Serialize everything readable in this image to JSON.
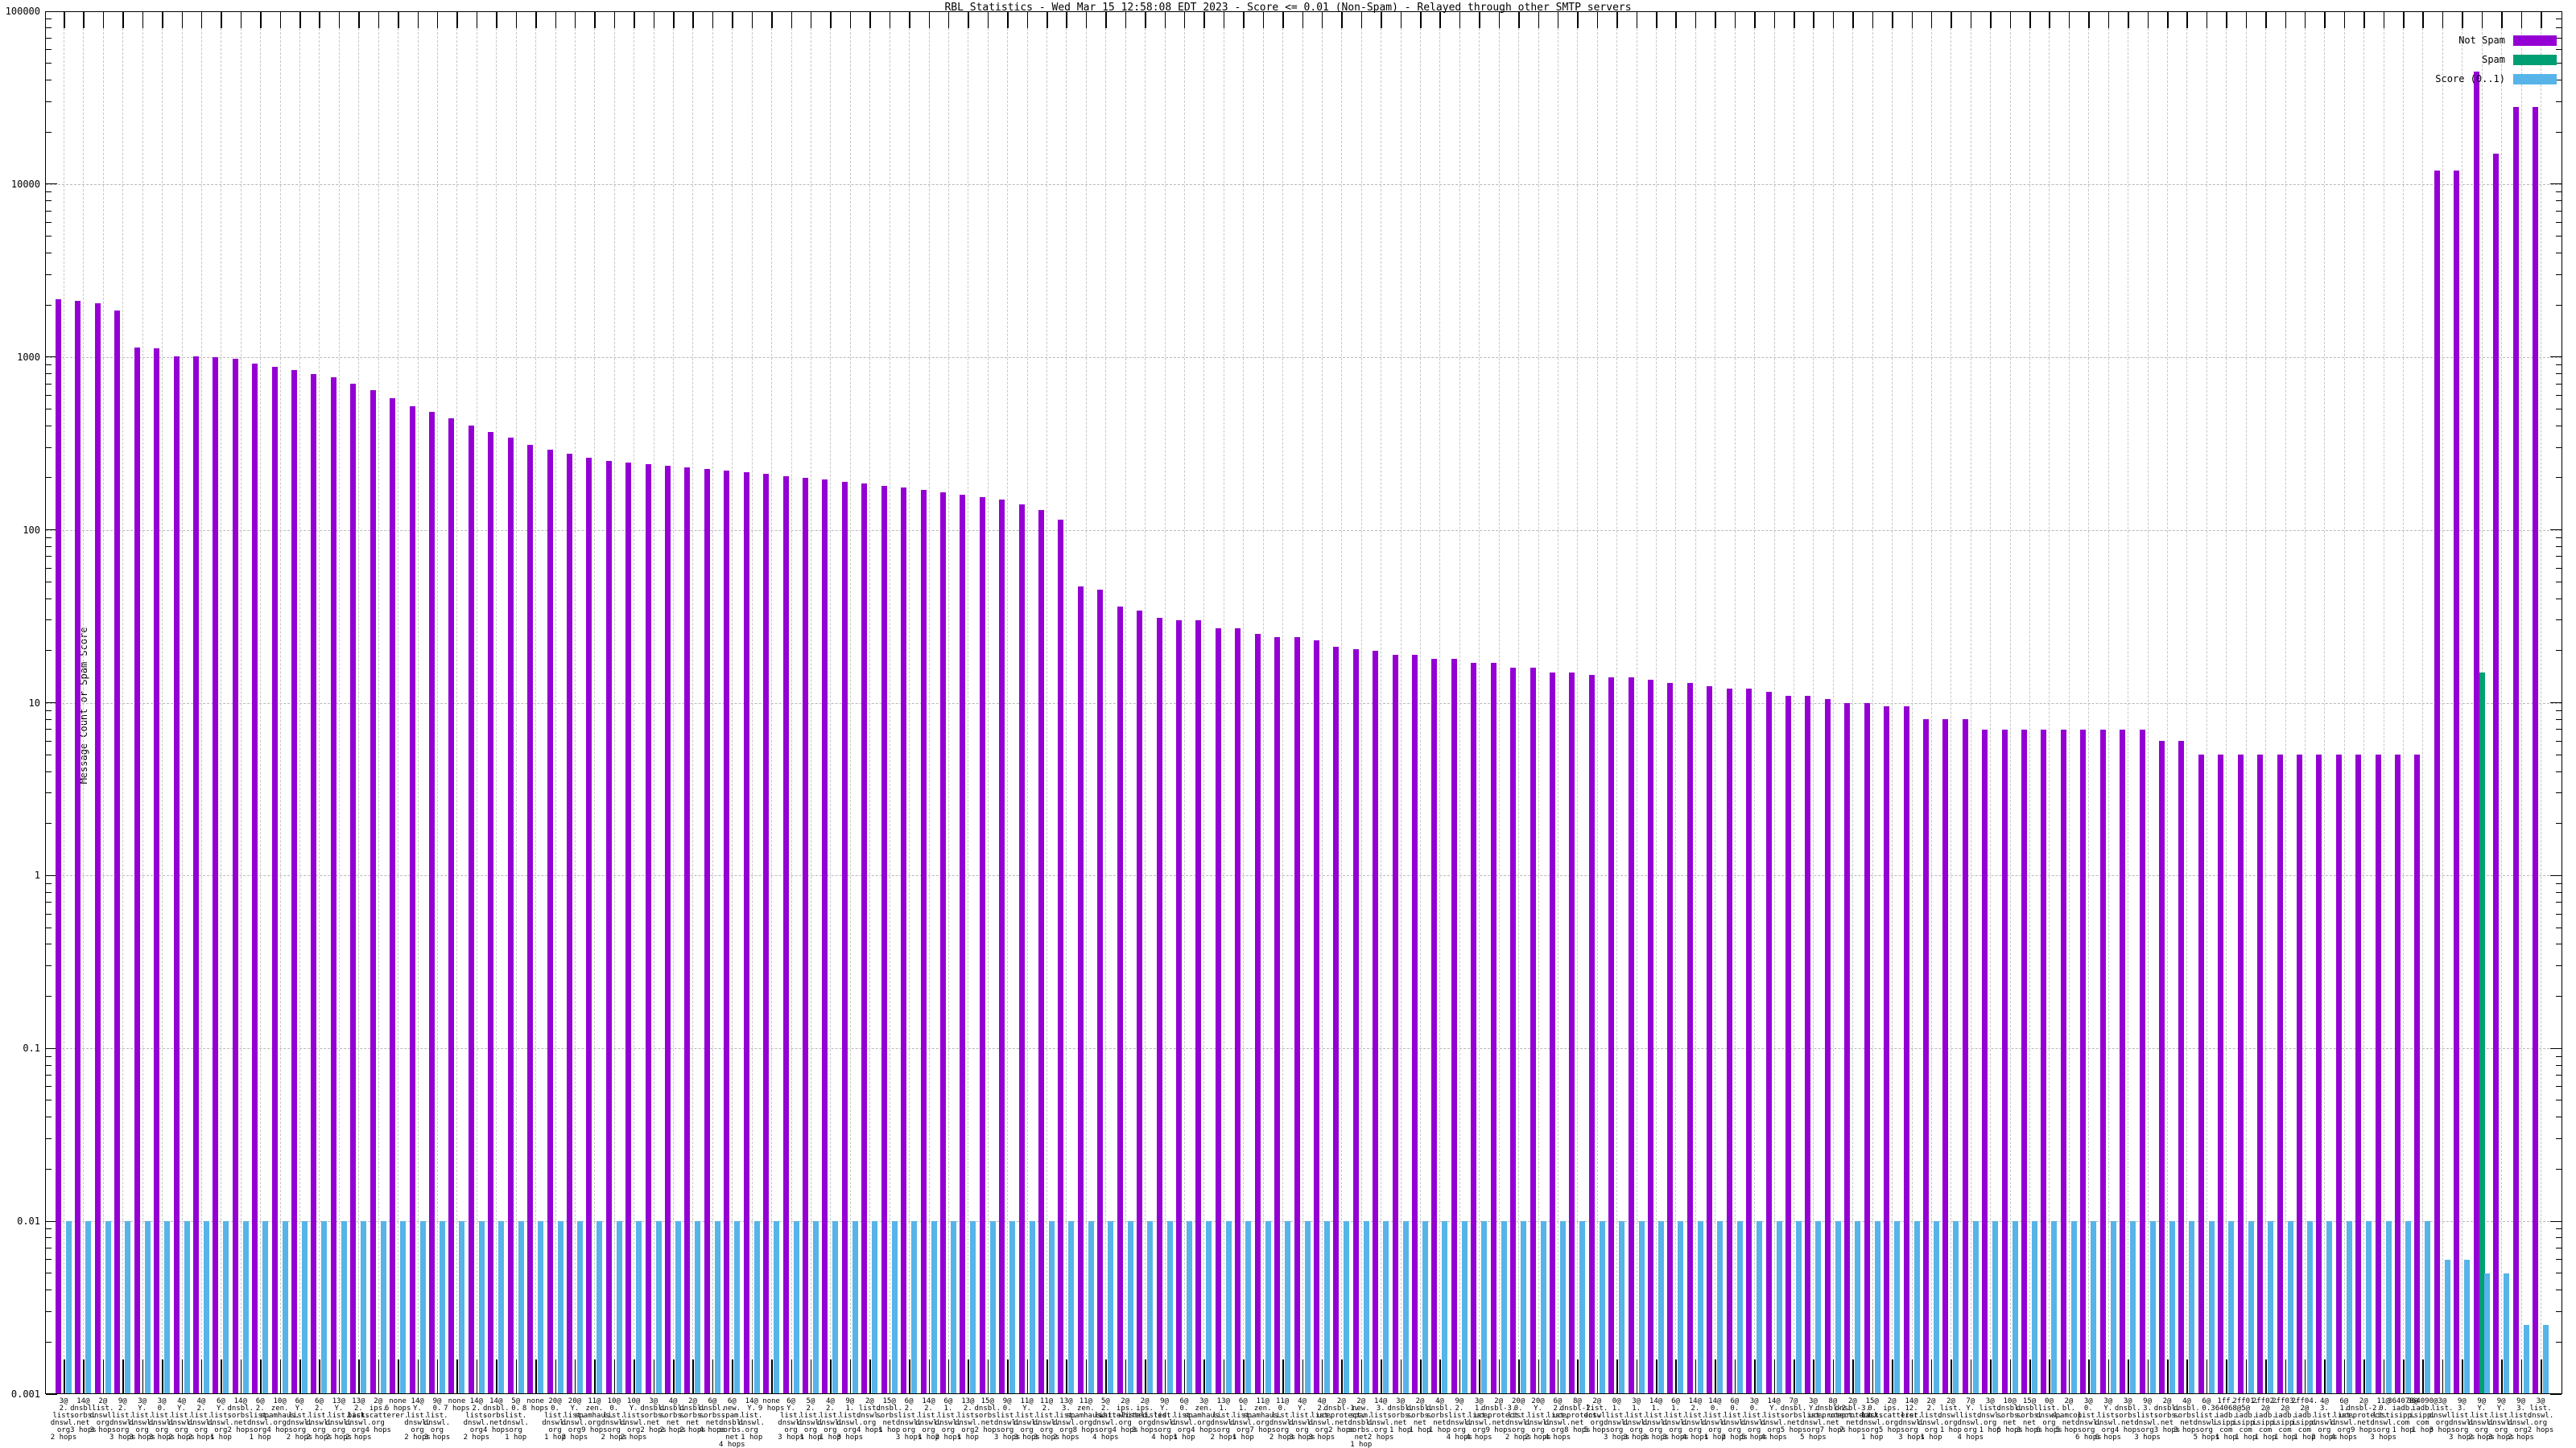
{
  "title": "RBL Statistics - Wed Mar 15 12:58:08 EDT 2023 - Score <= 0.01 (Non-Spam) - Relayed through other SMTP servers",
  "y_axis": {
    "label": "Message Count or Spam Score",
    "tick_labels": [
      "100000",
      "10000",
      "1000",
      "100",
      "10",
      "1",
      "0.1",
      "0.01",
      "0.001"
    ]
  },
  "legend": [
    {
      "label": "Not Spam",
      "color": "#9400d3"
    },
    {
      "label": "Spam",
      "color": "#009e73"
    },
    {
      "label": "Score (0..1)",
      "color": "#56b4e9"
    }
  ],
  "colors": {
    "not_spam": "#9400d3",
    "spam": "#009e73",
    "score": "#56b4e9",
    "grid": "#b9b9b9",
    "axis": "#000000"
  },
  "chart_data": {
    "type": "bar",
    "title": "RBL Statistics - Wed Mar 15 12:58:08 EDT 2023 - Score <= 0.01 (Non-Spam) - Relayed through other SMTP servers",
    "ylabel": "Message Count or Spam Score",
    "yscale": "log",
    "ylim": [
      0.001,
      100000
    ],
    "grid": true,
    "legend_position": "top-right",
    "categories": [
      "3@2.list.dnswl.org 2 hops",
      "14@dnsbl.sorbs.net 3 hops",
      "2@list.dnswl.org 3 hops",
      "9@2.list.dnswl.org 3 hops",
      "3@Y.list.dnswl.org 3 hops",
      "3@0.list.dnswl.org 3 hops",
      "4@Y.list.dnswl.org 2 hops",
      "4@2.list.dnswl.org 2 hops",
      "6@Y.list.dnswl.org 1 hop",
      "14@dnsbl.sorbs.net 2 hops",
      "6@2.list.dnswl.org 1 hop",
      "10@zen.spamhaus.org 4 hops",
      "6@Y.list.dnswl.org 2 hops",
      "6@2.list.dnswl.org 2 hops",
      "13@Y.list.dnswl.org 2 hops",
      "13@2.list.dnswl.org 2 hops",
      "2@ips.backscatterer.org 4 hops",
      "none 6 hops",
      "14@Y.list.dnswl.org 2 hops",
      "9@0.list.dnswl.org 3 hops",
      "none 7 hops",
      "14@2.list.dnswl.org 2 hops",
      "14@dnsbl.sorbs.net 4 hops",
      "5@0.list.dnswl.org 1 hop",
      "none 8 hops",
      "20@0.list.dnswl.org 1 hop",
      "20@Y.list.dnswl.org 2 hops",
      "11@zen.spamhaus.org 9 hops",
      "10@0.list.dnswl.org 2 hops",
      "10@Y.list.dnswl.org 2 hops",
      "3@dnsbl.sorbs.net 2 hops",
      "4@dnsbl.sorbs.net 2 hops",
      "2@dnsbl.sorbs.net 2 hops",
      "6@dnsbl.sorbs.net 4 hops",
      "6@new.spam.dnsbl.sorbs.net 4 hops",
      "14@Y.list.dnswl.org 1 hop",
      "none 9 hops",
      "6@Y.list.dnswl.org 3 hops",
      "5@2.list.dnswl.org 1 hop",
      "4@2.list.dnswl.org 1 hop",
      "9@1.list.dnswl.org 3 hops",
      "2@list.dnswl.org 4 hops",
      "15@dnsbl.sorbs.net 1 hop",
      "6@2.list.dnswl.org 3 hops",
      "14@2.list.dnswl.org 1 hop",
      "6@1.list.dnswl.org 2 hops",
      "13@2.list.dnswl.org 1 hop",
      "15@dnsbl.sorbs.net 2 hops",
      "9@0.list.dnswl.org 3 hops",
      "11@Y.list.dnswl.org 3 hops",
      "11@2.list.dnswl.org 3 hops",
      "13@3.list.dnswl.org 2 hops",
      "11@zen.spamhaus.org 8 hops",
      "5@2.list.dnswl.org 4 hops",
      "2@ips.whitelisted.org 4 hops",
      "2@ips.whitelisted.org 3 hops",
      "9@Y.list.dnswl.org 4 hops",
      "6@0.list.dnswl.org 1 hop",
      "3@zen.spamhaus.org 4 hops",
      "13@1.list.dnswl.org 2 hops",
      "6@1.list.dnswl.org 1 hop",
      "11@zen.spamhaus.org 7 hops",
      "11@0.list.dnswl.org 2 hops",
      "4@Y.list.dnswl.org 3 hops",
      "4@2.list.dnswl.org 3 hops",
      "2@dnsbl-1.uceprotect.net 2 hops",
      "2@new.spam.dnsbl.sorbs.net 1 hop",
      "14@3.list.dnswl.org 2 hops",
      "3@dnsbl.sorbs.net 1 hop",
      "2@dnsbl.sorbs.net 1 hop",
      "4@dnsbl.sorbs.net 1 hop",
      "9@2.list.dnswl.org 4 hops",
      "3@1.list.dnswl.org 4 hops",
      "2@dnsbl-3.uceprotect.net 9 hops",
      "20@0.list.dnswl.org 2 hops",
      "20@Y.list.dnswl.org 2 hops",
      "6@2.list.dnswl.org 4 hops",
      "8@dnsbl-2.uceprotect.net 8 hops",
      "2@list.dnswl.org 5 hops",
      "0@1.list.dnswl.org 3 hops",
      "3@1.list.dnswl.org 3 hops",
      "14@1.list.dnswl.org 3 hops",
      "6@1.list.dnswl.org 3 hops",
      "14@2.list.dnswl.org 4 hops",
      "14@0.list.dnswl.org 1 hop",
      "6@0.list.dnswl.org 2 hops",
      "3@0.list.dnswl.org 5 hops",
      "14@Y.list.dnswl.org 4 hops",
      "7@dnsbl.sorbs.net 5 hops",
      "3@Y.list.dnswl.org 5 hops",
      "8@dnsbl-2.uceprotect.net 7 hops",
      "2@dnsbl-3.uceprotect.net 7 hops",
      "15@0.list.dnswl.org 1 hop",
      "2@ips.backscatterer.org 5 hops",
      "14@12.list.dnswl.org 3 hops",
      "2@2.list.dnswl.org 1 hop",
      "2@list.dnswl.org 1 hop",
      "7@Y.list.dnswl.org 4 hops",
      "3@list.dnswl.org 1 hop",
      "10@dnsbl.sorbs.net 6 hops",
      "15@dnsbl.sorbs.net 3 hops",
      "0@list.dnswl.org 6 hops",
      "2@bl.spamcop.net 5 hops",
      "3@0.list.dnswl.org 6 hops",
      "3@Y.list.dnswl.org 6 hops",
      "3@dnsbl.sorbs.net 4 hops",
      "9@3.list.dnswl.org 3 hops",
      "2@dnsbl.sorbs.net 3 hops",
      "4@dnsbl.sorbs.net 3 hops",
      "6@0.list.dnswl.org 5 hops",
      "1ff.364068@iadb.isipp.com 1 hop",
      "2ff01.5@iadb.isipp.com 1 hop",
      "2ff02.2@iadb.isipp.com 1 hop",
      "2ff03.2@iadb.isipp.com 1 hop",
      "2ff04.2@iadb.isipp.com 1 hop",
      "4@3.list.dnswl.org 2 hops",
      "6@1.list.dnswl.org 4 hops",
      "2@dnsbl-2.uceprotect.net 9 hops",
      "11@0.list.dnswl.org 3 hops",
      "364078@iadb.isipp.com 1 hop",
      "364090@iadb.isipp.com 1 hop",
      "3@list.dnswl.org 3 hops",
      "9@3.list.dnswl.org 3 hops",
      "9@Y.list.dnswl.org 2 hops",
      "9@Y.list.dnswl.org 3 hops",
      "9@3.list.dnswl.org 2 hops",
      "3@list.dnswl.org 2 hops"
    ],
    "series": [
      {
        "name": "Not Spam",
        "color": "#9400d3",
        "values": [
          2160,
          2110,
          2050,
          1850,
          1140,
          1120,
          1010,
          1005,
          1000,
          980,
          920,
          880,
          840,
          800,
          760,
          700,
          640,
          580,
          520,
          480,
          440,
          400,
          370,
          340,
          310,
          290,
          275,
          260,
          250,
          245,
          240,
          235,
          230,
          225,
          220,
          215,
          210,
          205,
          200,
          195,
          190,
          185,
          180,
          175,
          170,
          165,
          160,
          155,
          150,
          140,
          130,
          115,
          47,
          45,
          36,
          34,
          31,
          30,
          30,
          27,
          27,
          25,
          24,
          24,
          23,
          21,
          20.5,
          20,
          19,
          19,
          18,
          18,
          17,
          17,
          16,
          16,
          15,
          15,
          14.5,
          14,
          14,
          13.5,
          13,
          13,
          12.5,
          12,
          12,
          11.5,
          11,
          11,
          10.5,
          10,
          10,
          9.5,
          9.5,
          8,
          8,
          8,
          7,
          7,
          7,
          7,
          7,
          7,
          7,
          7,
          7,
          6,
          6,
          5,
          5,
          5,
          5,
          5,
          5,
          5,
          5,
          5,
          5,
          5,
          5,
          12000,
          12000,
          45000,
          15000,
          28000,
          28000
        ]
      },
      {
        "name": "Spam",
        "color": "#009e73",
        "values": [
          0,
          0,
          0,
          0,
          0,
          0,
          0,
          0,
          0,
          0,
          0,
          0,
          0,
          0,
          0,
          0,
          0,
          0,
          0,
          0,
          0,
          0,
          0,
          0,
          0,
          0,
          0,
          0,
          0,
          0,
          0,
          0,
          0,
          0,
          0,
          0,
          0,
          0,
          0,
          0,
          0,
          0,
          0,
          0,
          0,
          0,
          0,
          0,
          0,
          0,
          0,
          0,
          0,
          0,
          0,
          0,
          0,
          0,
          0,
          0,
          0,
          0,
          0,
          0,
          0,
          0,
          0,
          0,
          0,
          0,
          0,
          0,
          0,
          0,
          0,
          0,
          0,
          0,
          0,
          0,
          0,
          0,
          0,
          0,
          0,
          0,
          0,
          0,
          0,
          0,
          0,
          0,
          0,
          0,
          0,
          0,
          0,
          0,
          0,
          0,
          0,
          0,
          0,
          0,
          0,
          0,
          0,
          0,
          0,
          0,
          0,
          0,
          0,
          0,
          0,
          0,
          0,
          0,
          0,
          0,
          0,
          0,
          0,
          15,
          0,
          0,
          0
        ]
      },
      {
        "name": "Score (0..1)",
        "color": "#56b4e9",
        "values": [
          0.01,
          0.01,
          0.01,
          0.01,
          0.01,
          0.01,
          0.01,
          0.01,
          0.01,
          0.01,
          0.01,
          0.01,
          0.01,
          0.01,
          0.01,
          0.01,
          0.01,
          0.01,
          0.01,
          0.01,
          0.01,
          0.01,
          0.01,
          0.01,
          0.01,
          0.01,
          0.01,
          0.01,
          0.01,
          0.01,
          0.01,
          0.01,
          0.01,
          0.01,
          0.01,
          0.01,
          0.01,
          0.01,
          0.01,
          0.01,
          0.01,
          0.01,
          0.01,
          0.01,
          0.01,
          0.01,
          0.01,
          0.01,
          0.01,
          0.01,
          0.01,
          0.01,
          0.01,
          0.01,
          0.01,
          0.01,
          0.01,
          0.01,
          0.01,
          0.01,
          0.01,
          0.01,
          0.01,
          0.01,
          0.01,
          0.01,
          0.01,
          0.01,
          0.01,
          0.01,
          0.01,
          0.01,
          0.01,
          0.01,
          0.01,
          0.01,
          0.01,
          0.01,
          0.01,
          0.01,
          0.01,
          0.01,
          0.01,
          0.01,
          0.01,
          0.01,
          0.01,
          0.01,
          0.01,
          0.01,
          0.01,
          0.01,
          0.01,
          0.01,
          0.01,
          0.01,
          0.01,
          0.01,
          0.01,
          0.01,
          0.01,
          0.01,
          0.01,
          0.01,
          0.01,
          0.01,
          0.01,
          0.01,
          0.01,
          0.01,
          0.01,
          0.01,
          0.01,
          0.01,
          0.01,
          0.01,
          0.01,
          0.01,
          0.01,
          0.01,
          0.01,
          0.006,
          0.006,
          0.005,
          0.005,
          0.0025,
          0.0025
        ]
      }
    ]
  }
}
